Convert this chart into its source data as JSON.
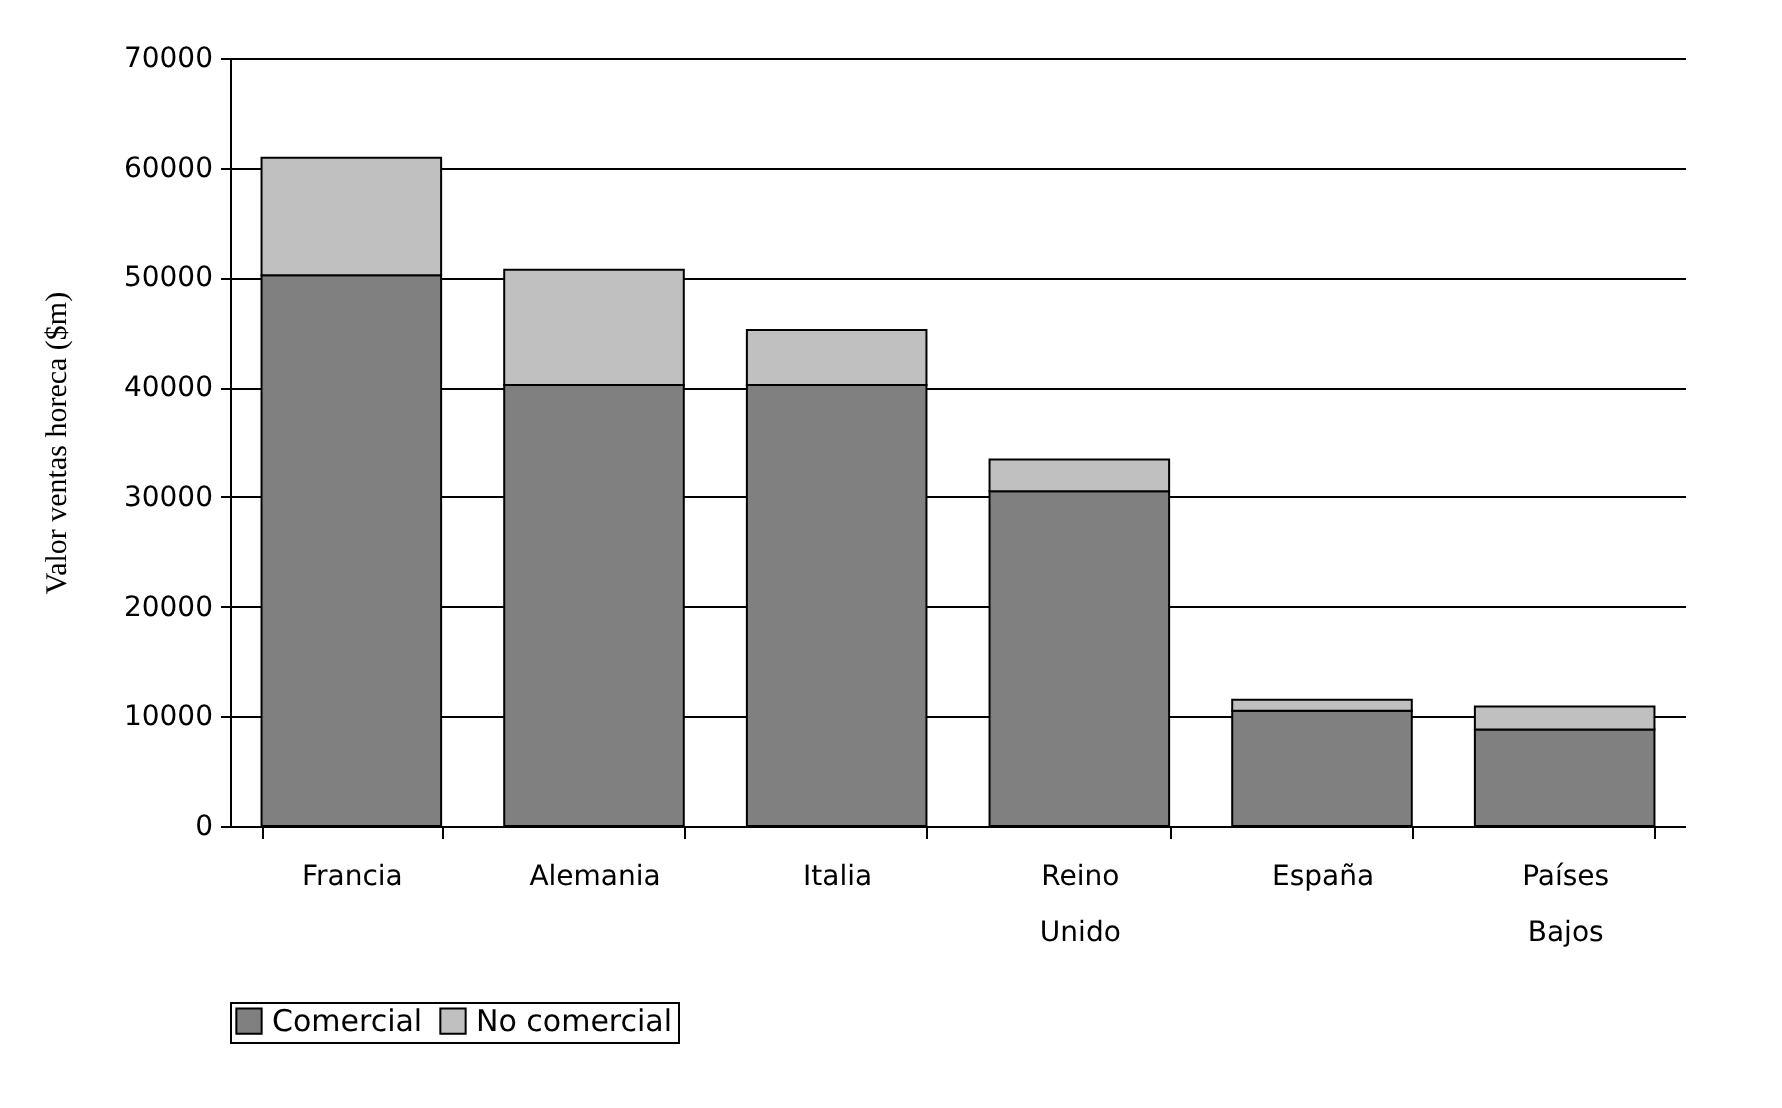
{
  "chart_data": {
    "type": "bar",
    "stacked": true,
    "ylabel": "Valor ventas horeca ($m)",
    "categories": [
      "Francia",
      "Alemania",
      "Italia",
      "Reino Unido",
      "España",
      "Países Bajos"
    ],
    "series": [
      {
        "name": "Comercial",
        "color": "#808080",
        "values": [
          50200,
          40200,
          40200,
          30500,
          10500,
          8800
        ]
      },
      {
        "name": "No comercial",
        "color": "#c0c0c0",
        "values": [
          10700,
          10500,
          5000,
          2900,
          1000,
          2100
        ]
      }
    ],
    "ylim": [
      0,
      70000
    ],
    "yticks": [
      0,
      10000,
      20000,
      30000,
      40000,
      50000,
      60000,
      70000
    ],
    "grid": "y",
    "legend": "bottom"
  }
}
